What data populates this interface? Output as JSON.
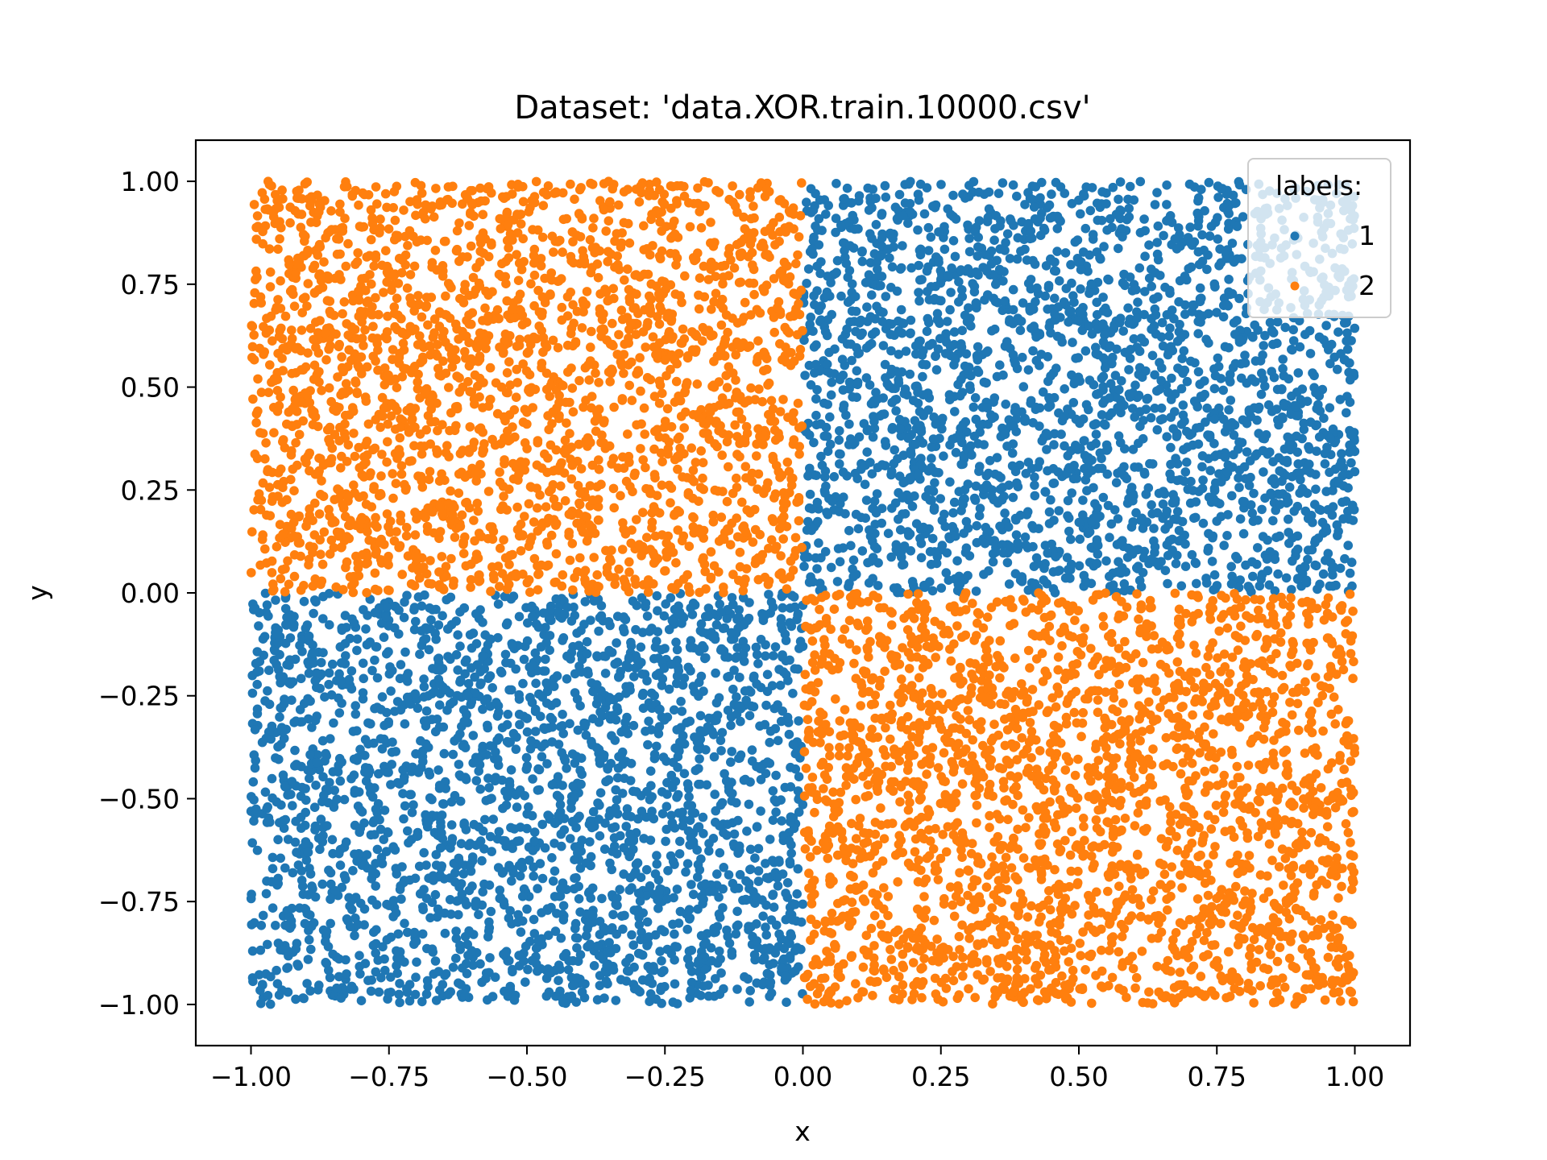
{
  "chart_data": {
    "type": "scatter",
    "title": "Dataset: 'data.XOR.train.10000.csv'",
    "xlabel": "x",
    "ylabel": "y",
    "xlim": [
      -1.1,
      1.1
    ],
    "ylim": [
      -1.1,
      1.1
    ],
    "grid": false,
    "x_ticks": [
      -1.0,
      -0.75,
      -0.5,
      -0.25,
      0.0,
      0.25,
      0.5,
      0.75,
      1.0
    ],
    "x_tick_labels": [
      "−1.00",
      "−0.75",
      "−0.50",
      "−0.25",
      "0.00",
      "0.25",
      "0.50",
      "0.75",
      "1.00"
    ],
    "y_ticks": [
      -1.0,
      -0.75,
      -0.5,
      -0.25,
      0.0,
      0.25,
      0.5,
      0.75,
      1.0
    ],
    "y_tick_labels": [
      "−1.00",
      "−0.75",
      "−0.50",
      "−0.25",
      "0.00",
      "0.25",
      "0.50",
      "0.75",
      "1.00"
    ],
    "legend": {
      "title": "labels:",
      "placement": "top-right"
    },
    "series": [
      {
        "name": "1",
        "color": "#1f77b4",
        "regions": [
          {
            "x": [
              0.0,
              1.0
            ],
            "y": [
              0.0,
              1.0
            ]
          },
          {
            "x": [
              -1.0,
              0.0
            ],
            "y": [
              -1.0,
              0.0
            ]
          }
        ],
        "values": [
          [
            0.43,
            0.96
          ],
          [
            0.62,
            0.88
          ],
          [
            0.25,
            0.71
          ],
          [
            0.88,
            0.52
          ],
          [
            0.14,
            0.43
          ],
          [
            0.51,
            0.37
          ],
          [
            0.77,
            0.19
          ],
          [
            0.33,
            0.12
          ],
          [
            0.95,
            0.08
          ],
          [
            0.06,
            0.91
          ],
          [
            -0.52,
            -0.38
          ],
          [
            -0.81,
            -0.74
          ],
          [
            -0.23,
            -0.12
          ],
          [
            -0.66,
            -0.92
          ],
          [
            -0.37,
            -0.55
          ],
          [
            -0.12,
            -0.81
          ],
          [
            -0.94,
            -0.27
          ],
          [
            -0.71,
            -0.49
          ],
          [
            -0.05,
            -0.33
          ],
          [
            -0.46,
            -0.97
          ]
        ]
      },
      {
        "name": "2",
        "color": "#ff7f0e",
        "regions": [
          {
            "x": [
              -1.0,
              0.0
            ],
            "y": [
              0.0,
              1.0
            ]
          },
          {
            "x": [
              0.0,
              1.0
            ],
            "y": [
              -1.0,
              0.0
            ]
          }
        ],
        "values": [
          [
            -0.47,
            0.62
          ],
          [
            -0.83,
            0.91
          ],
          [
            -0.21,
            0.28
          ],
          [
            -0.68,
            0.15
          ],
          [
            -0.33,
            0.84
          ],
          [
            -0.92,
            0.47
          ],
          [
            -0.11,
            0.66
          ],
          [
            -0.58,
            0.39
          ],
          [
            -0.76,
            0.73
          ],
          [
            -0.04,
            0.09
          ],
          [
            0.44,
            -0.58
          ],
          [
            0.71,
            -0.23
          ],
          [
            0.19,
            -0.86
          ],
          [
            0.88,
            -0.67
          ],
          [
            0.56,
            -0.12
          ],
          [
            0.27,
            -0.41
          ],
          [
            0.93,
            -0.94
          ],
          [
            0.11,
            -0.19
          ],
          [
            0.65,
            -0.79
          ],
          [
            0.38,
            -0.97
          ]
        ],
        "total_points_shown": 10000
      }
    ]
  }
}
